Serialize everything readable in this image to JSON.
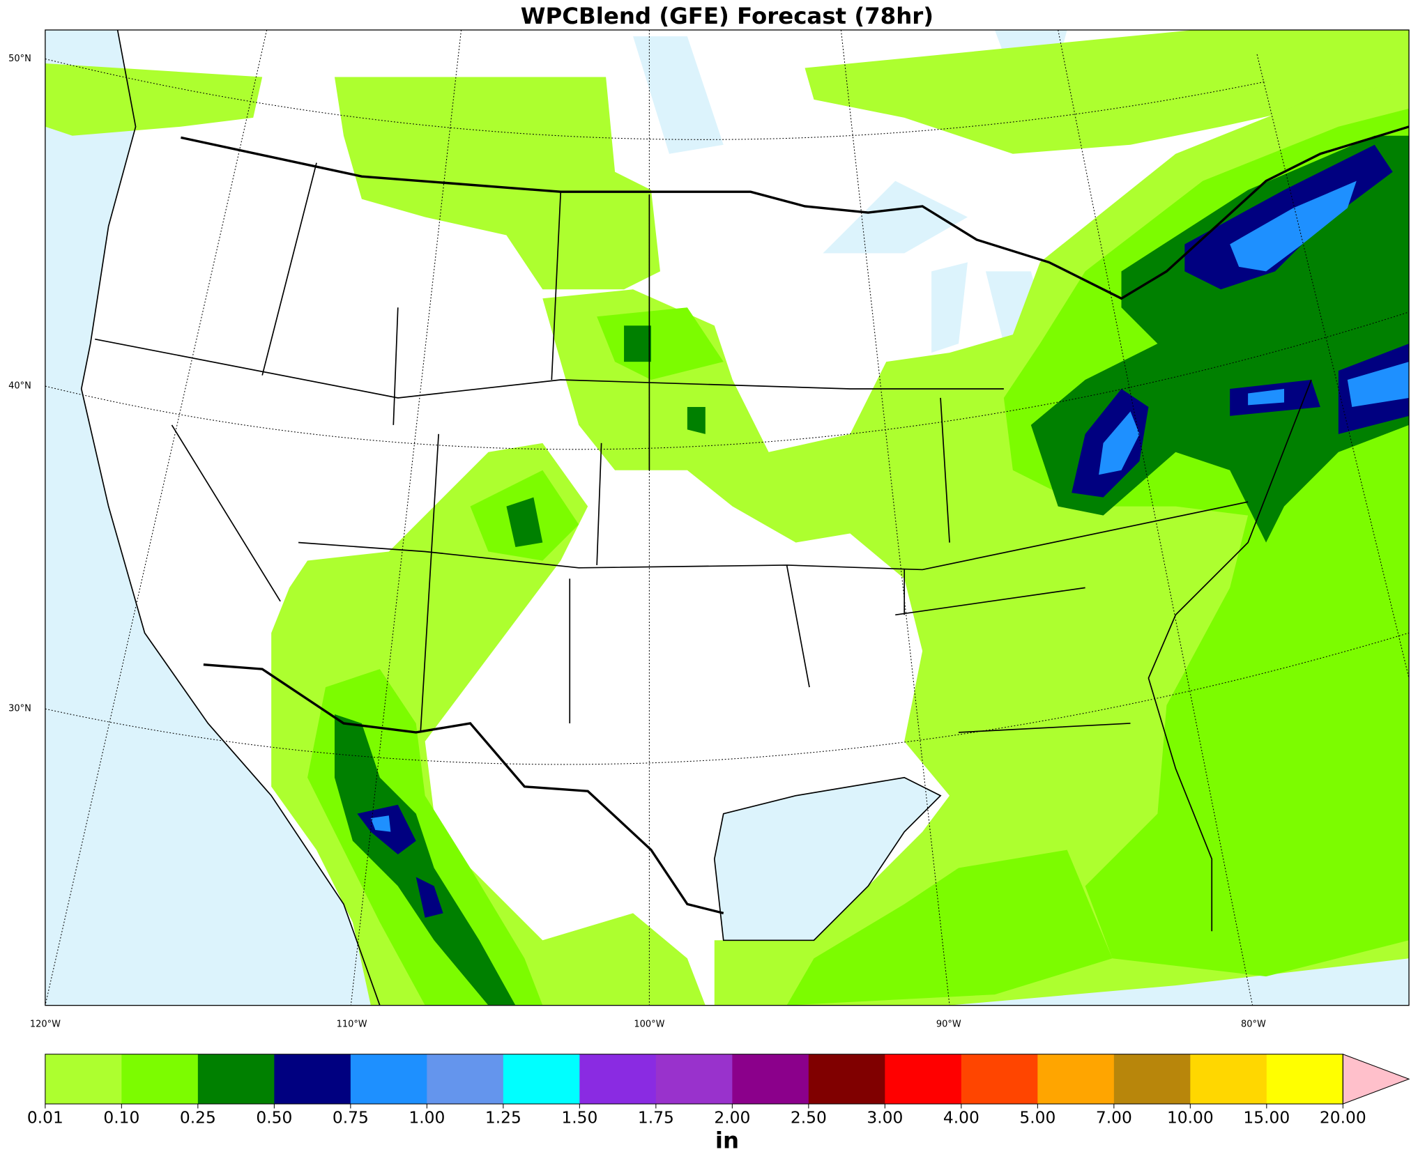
{
  "title": "WPCBlend (GFE) Forecast (78hr)",
  "map": {
    "lat_labels": [
      "50°N",
      "40°N",
      "30°N"
    ],
    "lon_labels": [
      "120°W",
      "110°W",
      "100°W",
      "90°W",
      "80°W"
    ]
  },
  "colorbar": {
    "ticks": [
      {
        "value": 0.01,
        "label": "0.01"
      },
      {
        "value": 0.1,
        "label": "0.10"
      },
      {
        "value": 0.25,
        "label": "0.25"
      },
      {
        "value": 0.5,
        "label": "0.50"
      },
      {
        "value": 0.75,
        "label": "0.75"
      },
      {
        "value": 1,
        "label": "1.00"
      },
      {
        "value": 1.25,
        "label": "1.25"
      },
      {
        "value": 1.5,
        "label": "1.50"
      },
      {
        "value": 1.75,
        "label": "1.75"
      },
      {
        "value": 2,
        "label": "2.00"
      },
      {
        "value": 2.5,
        "label": "2.50"
      },
      {
        "value": 3,
        "label": "3.00"
      },
      {
        "value": 4,
        "label": "4.00"
      },
      {
        "value": 5,
        "label": "5.00"
      },
      {
        "value": 7,
        "label": "7.00"
      },
      {
        "value": 10,
        "label": "10.00"
      },
      {
        "value": 15,
        "label": "15.00"
      },
      {
        "value": 20,
        "label": "20.00"
      }
    ],
    "colors": [
      "#adff2f",
      "#7cfc00",
      "#008000",
      "#000080",
      "#1e90ff",
      "#6495ed",
      "#00ffff",
      "#8a2be2",
      "#9932cc",
      "#8b008b",
      "#800000",
      "#ff0000",
      "#ff4500",
      "#ffa500",
      "#b8860b",
      "#ffd700",
      "#ffff00"
    ],
    "extend_color": "#ffc0cb",
    "unit": "in"
  }
}
